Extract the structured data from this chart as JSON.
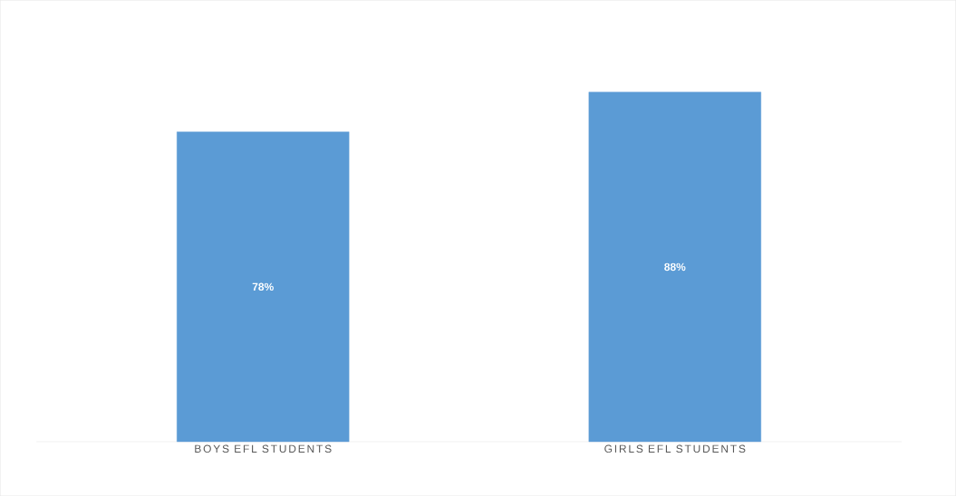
{
  "chart_data": {
    "type": "bar",
    "categories": [
      "BOYS EFL STUDENTS",
      "GIRLS EFL STUDENTS"
    ],
    "values": [
      78,
      88
    ],
    "value_labels": [
      "78%",
      "88%"
    ],
    "color": "#5b9bd5"
  }
}
